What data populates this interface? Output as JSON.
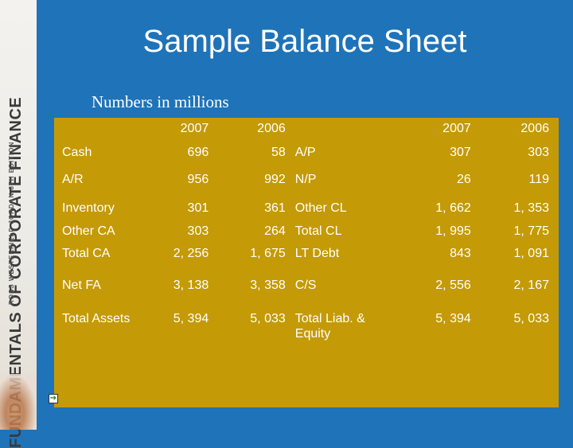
{
  "book": {
    "line1": "FUNDAMENTALS OF",
    "line2": "CORPORATE FINANCE",
    "authors": "ROSS WESTERFIELD JORDAN",
    "edition": "8TH EDITION"
  },
  "slide": {
    "title": "Sample Balance Sheet",
    "subtitle": "Numbers in millions"
  },
  "table": {
    "header": [
      "",
      "2007",
      "2006",
      "",
      "2007",
      "2006"
    ],
    "rows": [
      [
        "Cash",
        "696",
        "58",
        "A/P",
        "307",
        "303"
      ],
      [
        "A/R",
        "956",
        "992",
        "N/P",
        "26",
        "119"
      ],
      [
        "Inventory",
        "301",
        "361",
        "Other CL",
        "1, 662",
        "1, 353"
      ],
      [
        "Other CA",
        "303",
        "264",
        "Total CL",
        "1, 995",
        "1, 775"
      ],
      [
        "Total CA",
        "2, 256",
        "1, 675",
        "LT Debt",
        "843",
        "1, 091"
      ],
      [
        "Net FA",
        "3, 138",
        "3, 358",
        "C/S",
        "2, 556",
        "2, 167"
      ],
      [
        "Total Assets",
        "5, 394",
        "5, 033",
        "Total Liab. & Equity",
        "5, 394",
        "5, 033"
      ]
    ]
  },
  "nav": {
    "icon": "next-slide-icon",
    "glyph": "➔"
  },
  "colors": {
    "background": "#1f73b8",
    "table": "#c49a06",
    "text": "#ffffff"
  }
}
